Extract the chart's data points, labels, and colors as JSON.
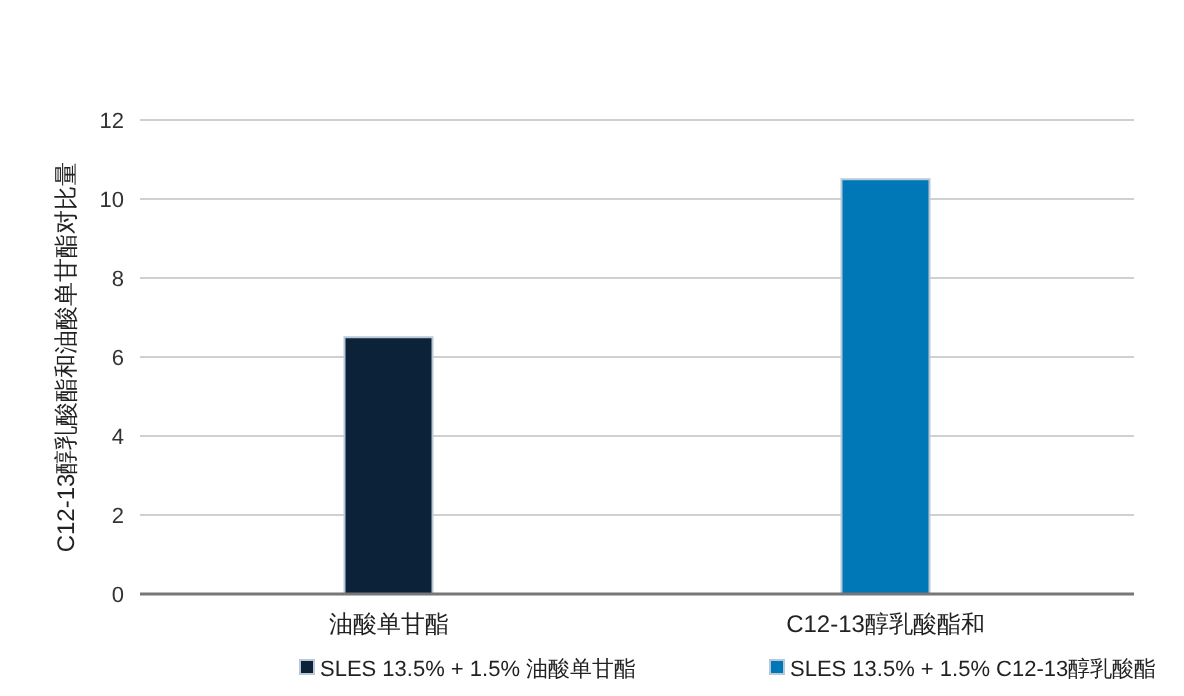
{
  "chart_data": {
    "type": "bar",
    "ylabel": "C12-13醇乳酸酯和油酸单甘酯对比量",
    "categories": [
      "油酸单甘酯",
      "C12-13醇乳酸酯和"
    ],
    "series": [
      {
        "name": "SLES 13.5% + 1.5% 油酸单甘酯",
        "color": "#0b2239",
        "values": [
          6.5,
          null
        ]
      },
      {
        "name": "SLES 13.5% + 1.5% C12-13醇乳酸酯",
        "color": "#0077b6",
        "values": [
          null,
          10.5
        ]
      }
    ],
    "ylim": [
      0,
      12
    ],
    "yticks": [
      0,
      2,
      4,
      6,
      8,
      10,
      12
    ],
    "grid": "y",
    "legend": "bottom"
  }
}
